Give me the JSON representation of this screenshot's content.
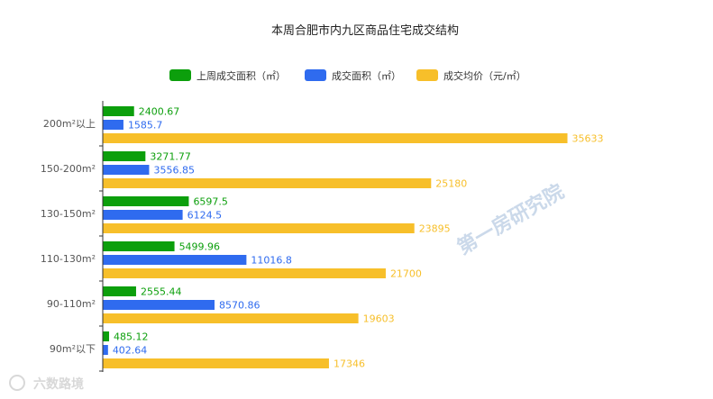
{
  "chart_data": {
    "type": "bar",
    "orientation": "horizontal",
    "title": "本周合肥市内九区商品住宅成交结构",
    "categories": [
      "200m²以上",
      "150-200m²",
      "130-150m²",
      "110-130m²",
      "90-110m²",
      "90m²以下"
    ],
    "series": [
      {
        "name": "上周成交面积（㎡）",
        "color": "#0c9f0c",
        "values": [
          2400.67,
          3271.77,
          6597.5,
          5499.96,
          2555.44,
          485.12
        ],
        "labels": [
          "2400.67",
          "3271.77",
          "6597.5",
          "5499.96",
          "2555.44",
          "485.12"
        ]
      },
      {
        "name": "成交面积（㎡）",
        "color": "#2f6bef",
        "values": [
          1585.7,
          3556.85,
          6124.5,
          11016.8,
          8570.86,
          402.64
        ],
        "labels": [
          "1585.7",
          "3556.85",
          "6124.5",
          "11016.8",
          "8570.86",
          "402.64"
        ]
      },
      {
        "name": "成交均价（元/㎡）",
        "color": "#f7bf2a",
        "values": [
          35633,
          25180,
          23895,
          21700,
          19603,
          17346
        ],
        "labels": [
          "35633",
          "25180",
          "23895",
          "21700",
          "19603",
          "17346"
        ]
      }
    ],
    "xlim": [
      0,
      40000
    ],
    "grid": false,
    "legend_position": "top-center",
    "watermark": "第一房研究院",
    "source_mark": "六数路境"
  }
}
